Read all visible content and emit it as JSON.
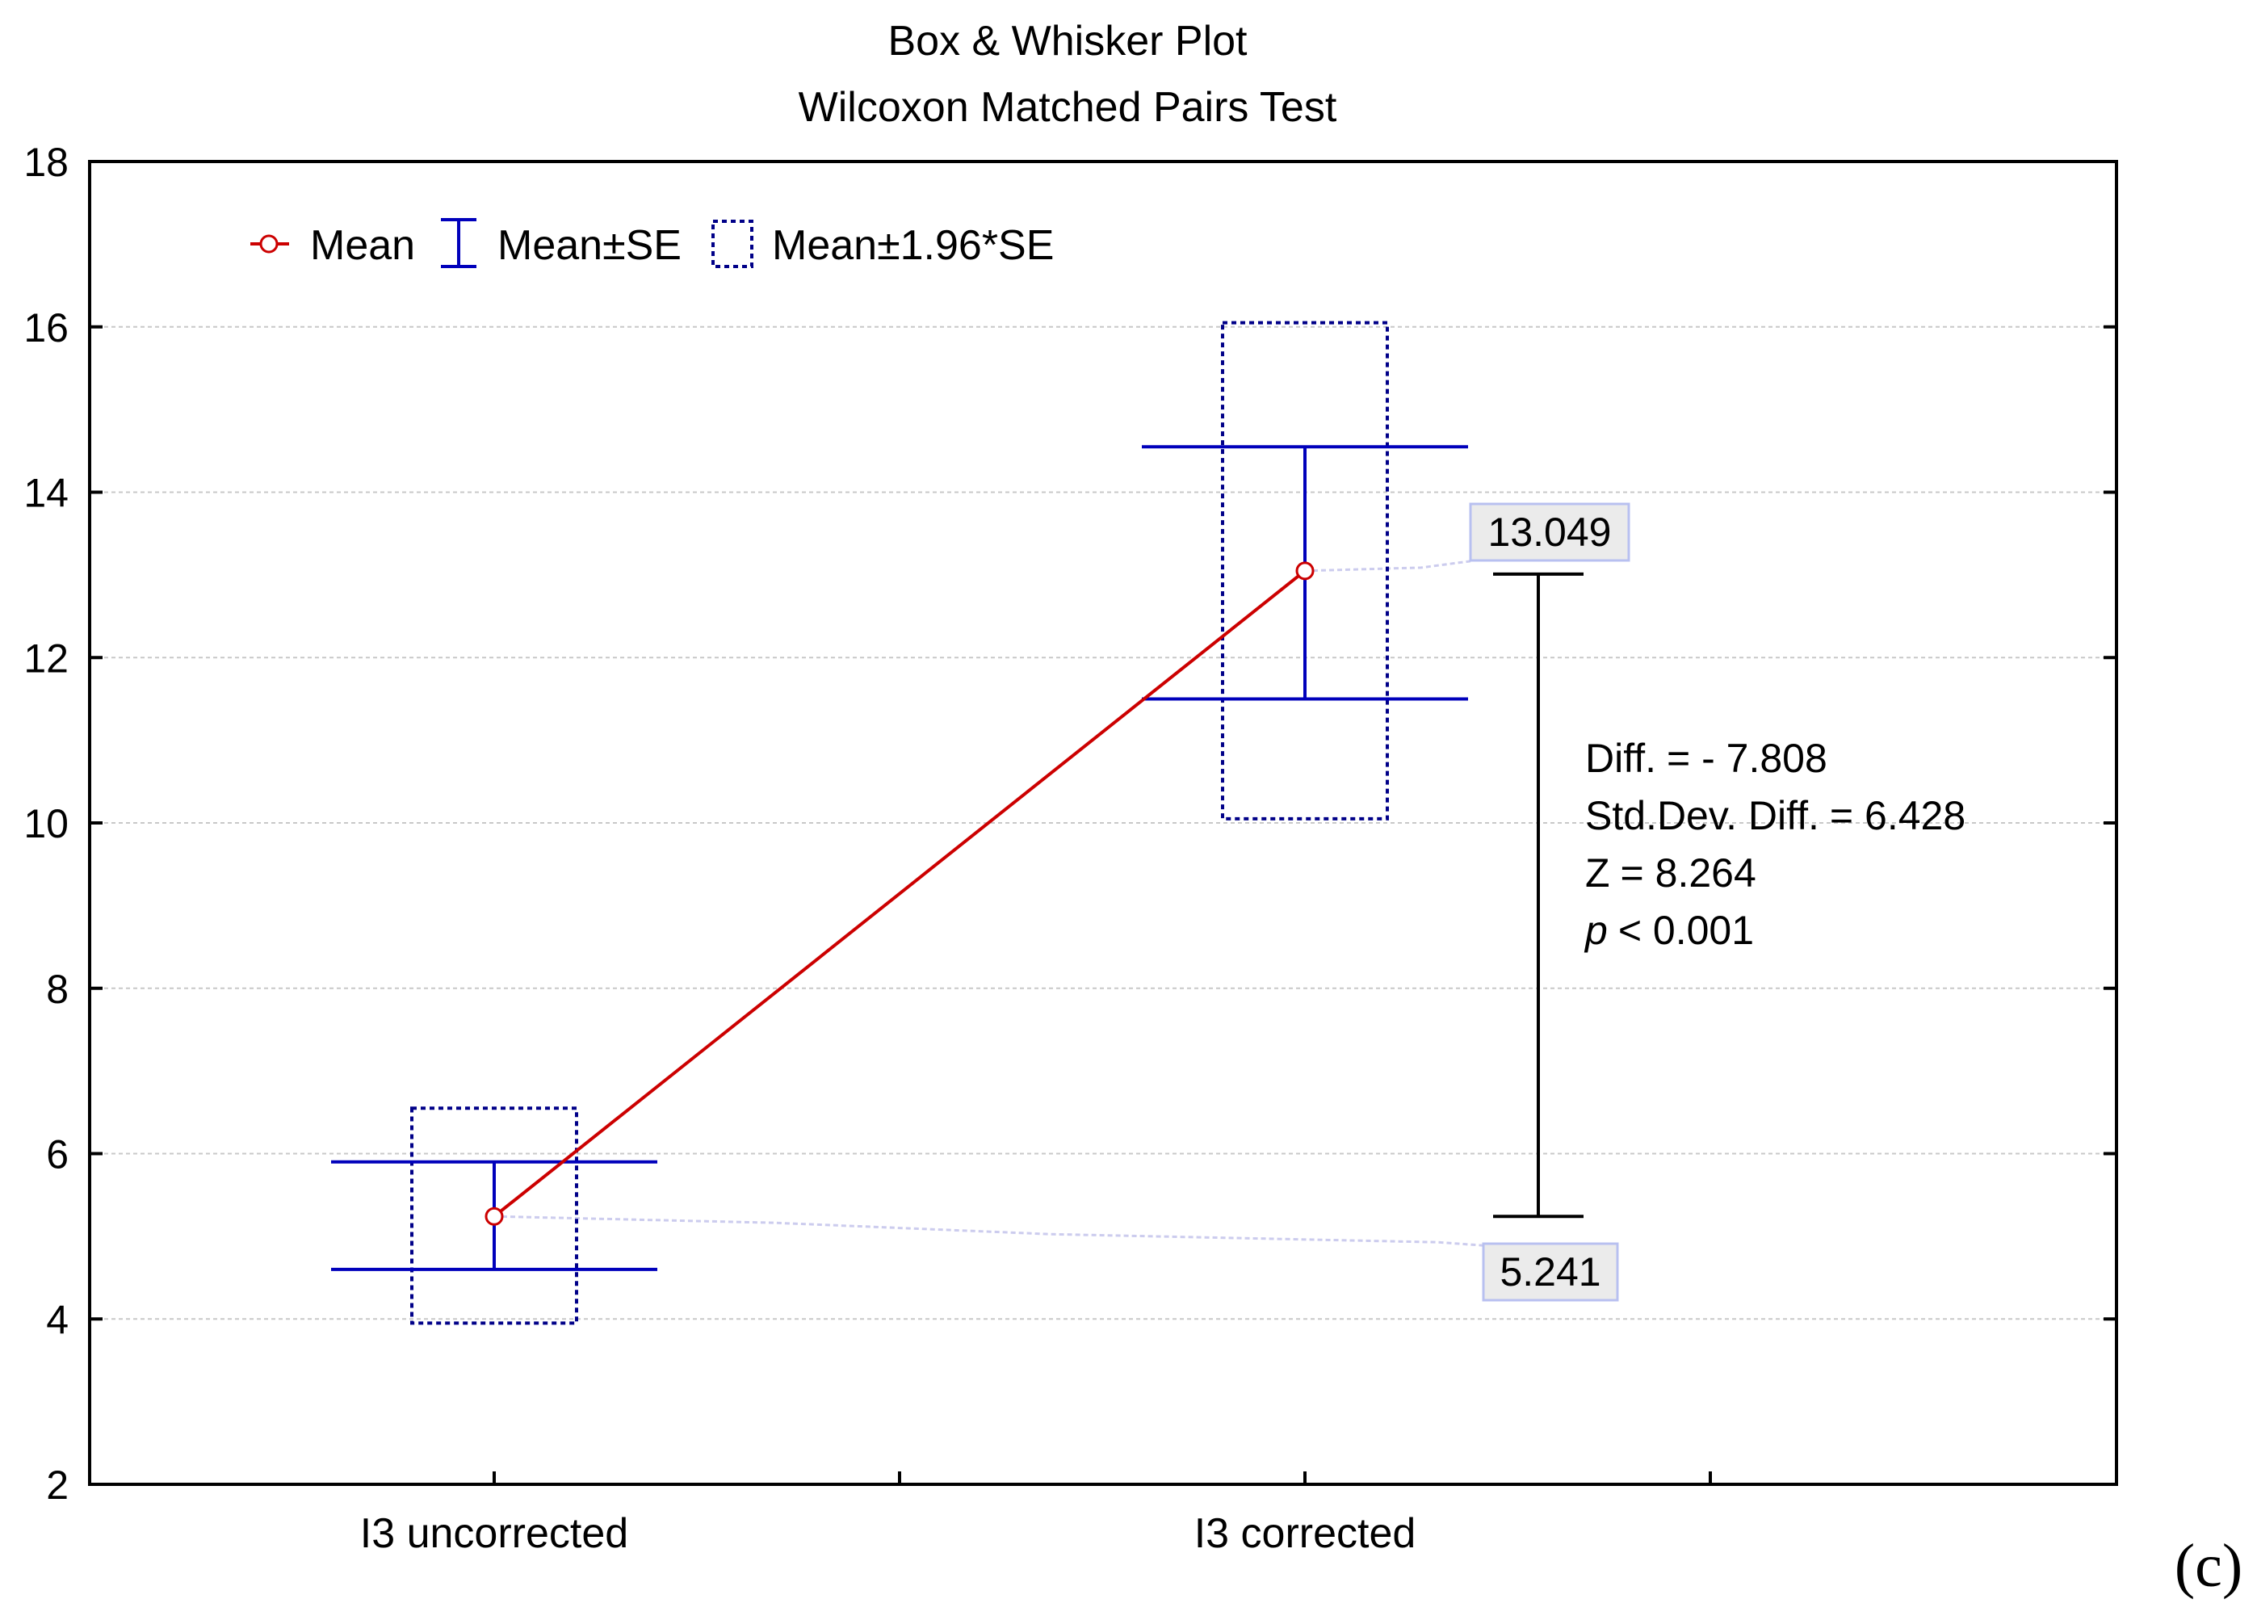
{
  "chart_data": {
    "type": "box",
    "title": "Box & Whisker Plot",
    "subtitle": "Wilcoxon Matched Pairs Test",
    "categories": [
      "I3 uncorrected",
      "I3 corrected"
    ],
    "series": [
      {
        "name": "Mean",
        "values": [
          5.241,
          13.049
        ]
      },
      {
        "name": "Mean±SE",
        "lower": [
          4.6,
          11.5
        ],
        "upper": [
          5.9,
          14.55
        ]
      },
      {
        "name": "Mean±1.96*SE",
        "lower": [
          3.95,
          10.05
        ],
        "upper": [
          6.55,
          16.05
        ]
      }
    ],
    "ylim": [
      2,
      18
    ],
    "yticks": [
      2,
      4,
      6,
      8,
      10,
      12,
      14,
      16,
      18
    ],
    "grid": true,
    "legend_position": "top-left",
    "value_labels": [
      "13.049",
      "5.241"
    ],
    "annotations": {
      "diff_label": "Diff.",
      "diff_value": "= - 7.808",
      "sd_label": "Std.Dev. Diff.",
      "sd_value": "= 6.428",
      "z_label": "Z",
      "z_value": "= 8.264",
      "p_label": "p",
      "p_value": "< 0.001"
    },
    "panel_label": "(c)"
  },
  "colors": {
    "mean_line": "#cc0000",
    "se": "#0000bb",
    "ci_box": "#000088",
    "diff_bar": "#000000",
    "grid": "#c8c8c8",
    "label_box_fill": "#ebebeb",
    "label_box_stroke": "#b8c0f0",
    "connector": "#ccccee"
  }
}
